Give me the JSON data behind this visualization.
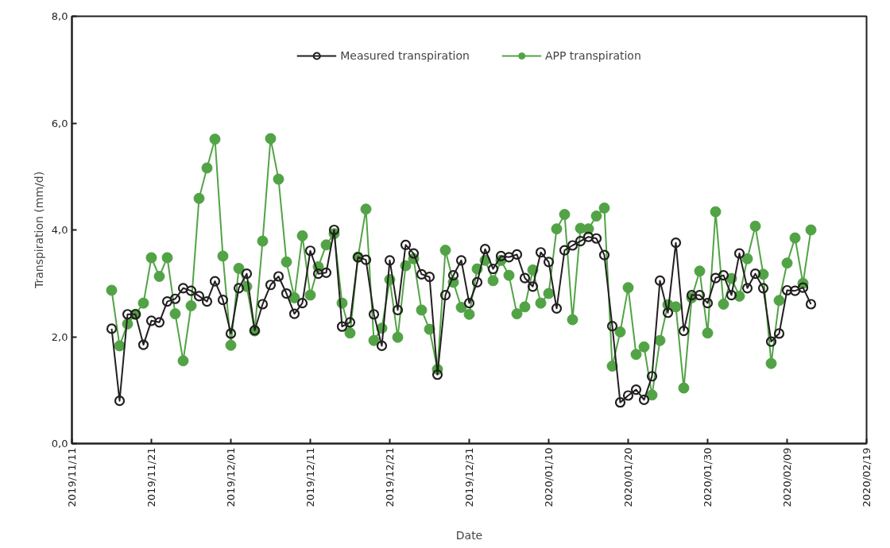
{
  "chart_data": {
    "type": "line",
    "xlabel": "Date",
    "ylabel": "Transpiration (mm/d)",
    "x": [
      "2019-11-16",
      "2019-11-17",
      "2019-11-18",
      "2019-11-19",
      "2019-11-20",
      "2019-11-21",
      "2019-11-22",
      "2019-11-23",
      "2019-11-24",
      "2019-11-25",
      "2019-11-26",
      "2019-11-27",
      "2019-11-28",
      "2019-11-29",
      "2019-11-30",
      "2019-12-01",
      "2019-12-02",
      "2019-12-03",
      "2019-12-04",
      "2019-12-05",
      "2019-12-06",
      "2019-12-07",
      "2019-12-08",
      "2019-12-09",
      "2019-12-10",
      "2019-12-11",
      "2019-12-12",
      "2019-12-13",
      "2019-12-14",
      "2019-12-15",
      "2019-12-16",
      "2019-12-17",
      "2019-12-18",
      "2019-12-19",
      "2019-12-20",
      "2019-12-21",
      "2019-12-22",
      "2019-12-23",
      "2019-12-24",
      "2019-12-25",
      "2019-12-26",
      "2019-12-27",
      "2019-12-28",
      "2019-12-29",
      "2019-12-30",
      "2019-12-31",
      "2020-01-01",
      "2020-01-02",
      "2020-01-03",
      "2020-01-04",
      "2020-01-05",
      "2020-01-06",
      "2020-01-07",
      "2020-01-08",
      "2020-01-09",
      "2020-01-10",
      "2020-01-11",
      "2020-01-12",
      "2020-01-13",
      "2020-01-14",
      "2020-01-15",
      "2020-01-16",
      "2020-01-17",
      "2020-01-18",
      "2020-01-19",
      "2020-01-20",
      "2020-01-21",
      "2020-01-22",
      "2020-01-23",
      "2020-01-24",
      "2020-01-25",
      "2020-01-26",
      "2020-01-27",
      "2020-01-28",
      "2020-01-29",
      "2020-01-30",
      "2020-01-31",
      "2020-02-01",
      "2020-02-02",
      "2020-02-03",
      "2020-02-04",
      "2020-02-05",
      "2020-02-06",
      "2020-02-07",
      "2020-02-08",
      "2020-02-09",
      "2020-02-10",
      "2020-02-11",
      "2020-02-12"
    ],
    "series": [
      {
        "name": "Measured transpiration",
        "color": "#231f20",
        "marker": "circle",
        "values": [
          2.15,
          0.8,
          2.42,
          2.42,
          1.85,
          2.3,
          2.27,
          2.66,
          2.71,
          2.91,
          2.86,
          2.76,
          2.66,
          3.04,
          2.69,
          2.06,
          2.91,
          3.18,
          2.12,
          2.61,
          2.97,
          3.13,
          2.81,
          2.43,
          2.63,
          3.61,
          3.18,
          3.2,
          4.0,
          2.19,
          2.27,
          3.49,
          3.44,
          2.42,
          1.83,
          3.43,
          2.5,
          3.72,
          3.56,
          3.17,
          3.12,
          1.29,
          2.78,
          3.15,
          3.43,
          2.63,
          3.02,
          3.64,
          3.27,
          3.51,
          3.49,
          3.54,
          3.1,
          2.94,
          3.58,
          3.4,
          2.53,
          3.62,
          3.71,
          3.79,
          3.87,
          3.84,
          3.53,
          2.2,
          0.77,
          0.9,
          1.01,
          0.82,
          1.26,
          3.05,
          2.45,
          3.76,
          2.11,
          2.78,
          2.78,
          2.63,
          3.1,
          3.15,
          2.78,
          3.56,
          2.91,
          3.18,
          2.91,
          1.91,
          2.06,
          2.87,
          2.86,
          2.92,
          2.61
        ]
      },
      {
        "name": "APP transpiration",
        "color": "#52a346",
        "marker": "circle_filled",
        "values": [
          2.87,
          1.83,
          2.24,
          2.42,
          2.63,
          3.48,
          3.13,
          3.48,
          2.43,
          1.55,
          2.58,
          4.59,
          5.16,
          5.7,
          3.51,
          1.84,
          3.28,
          2.94,
          2.11,
          3.79,
          5.71,
          4.95,
          3.4,
          2.73,
          3.89,
          2.78,
          3.31,
          3.72,
          3.93,
          2.63,
          2.07,
          3.49,
          4.39,
          1.93,
          2.16,
          3.07,
          1.99,
          3.33,
          3.46,
          2.5,
          2.14,
          1.39,
          3.62,
          3.02,
          2.55,
          2.42,
          3.27,
          3.43,
          3.05,
          3.43,
          3.15,
          2.43,
          2.56,
          3.25,
          2.63,
          2.81,
          4.02,
          4.29,
          2.32,
          4.03,
          4.02,
          4.26,
          4.41,
          1.45,
          2.09,
          2.92,
          1.67,
          1.81,
          0.91,
          1.93,
          2.6,
          2.56,
          1.04,
          2.73,
          3.23,
          2.07,
          4.34,
          2.61,
          3.09,
          2.76,
          3.46,
          4.07,
          3.17,
          1.5,
          2.68,
          3.38,
          3.85,
          3.0,
          4.0
        ]
      }
    ],
    "xlim": [
      "2019-11-11",
      "2020-02-19"
    ],
    "xticks": [
      {
        "value": "2019-11-11",
        "label": "2019/11/11"
      },
      {
        "value": "2019-11-21",
        "label": "2019/11/21"
      },
      {
        "value": "2019-12-01",
        "label": "2019/12/01"
      },
      {
        "value": "2019-12-11",
        "label": "2019/12/11"
      },
      {
        "value": "2019-12-21",
        "label": "2019/12/21"
      },
      {
        "value": "2019-12-31",
        "label": "2019/12/31"
      },
      {
        "value": "2020-01-10",
        "label": "2020/01/10"
      },
      {
        "value": "2020-01-20",
        "label": "2020/01/20"
      },
      {
        "value": "2020-01-30",
        "label": "2020/01/30"
      },
      {
        "value": "2020-02-09",
        "label": "2020/02/09"
      },
      {
        "value": "2020-02-19",
        "label": "2020/02/19"
      }
    ],
    "ylim": [
      0,
      8
    ],
    "yticks": [
      {
        "value": 0,
        "label": "0,0"
      },
      {
        "value": 2,
        "label": "2,0"
      },
      {
        "value": 4,
        "label": "4,0"
      },
      {
        "value": 6,
        "label": "6,0"
      },
      {
        "value": 8,
        "label": "8,0"
      }
    ],
    "grid": false,
    "legend": "top",
    "line_style": "solid"
  }
}
